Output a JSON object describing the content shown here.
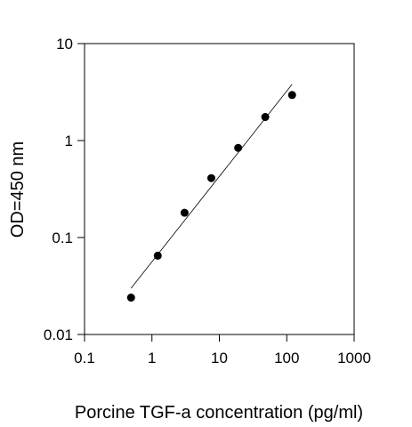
{
  "chart_data": {
    "type": "scatter",
    "title": "",
    "xlabel": "Porcine TGF-a concentration (pg/ml)",
    "ylabel": "OD=450 nm",
    "x_scale": "log",
    "y_scale": "log",
    "xlim": [
      0.1,
      1000
    ],
    "ylim": [
      0.01,
      10
    ],
    "x_ticks": [
      0.1,
      1,
      10,
      100,
      1000
    ],
    "y_ticks": [
      0.01,
      0.1,
      1,
      10
    ],
    "x_tick_labels": [
      "0.1",
      "1",
      "10",
      "100",
      "1000"
    ],
    "y_tick_labels": [
      "0.01",
      "0.1",
      "1",
      "10"
    ],
    "grid": false,
    "legend": "none",
    "series": [
      {
        "points": [
          {
            "x": 0.49,
            "y": 0.024
          },
          {
            "x": 1.22,
            "y": 0.065
          },
          {
            "x": 3.05,
            "y": 0.18
          },
          {
            "x": 7.6,
            "y": 0.41
          },
          {
            "x": 19.0,
            "y": 0.84
          },
          {
            "x": 48.0,
            "y": 1.75
          },
          {
            "x": 120.0,
            "y": 2.95
          }
        ],
        "color": "#000000"
      }
    ],
    "fit_line": {
      "x": [
        0.49,
        120.0
      ],
      "y": [
        0.03,
        3.8
      ],
      "color": "#000000"
    }
  }
}
